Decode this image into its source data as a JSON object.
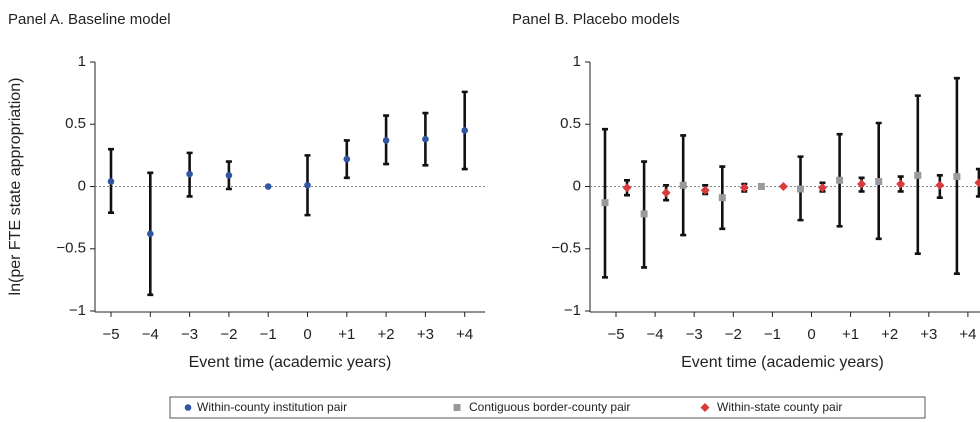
{
  "chart_data": [
    {
      "type": "errorbar",
      "title": "Panel A. Baseline model",
      "x_label": "Event time (academic years)",
      "y_label": "ln(per FTE state appropriation)",
      "categories": [
        "−5",
        "−4",
        "−3",
        "−2",
        "−1",
        "0",
        "+1",
        "+2",
        "+3",
        "+4"
      ],
      "ylim": [
        -1,
        1
      ],
      "yticks": [
        {
          "value": -1,
          "label": "−1"
        },
        {
          "value": -0.5,
          "label": "−0.5"
        },
        0,
        0.5,
        1
      ],
      "reference_line": 0,
      "series": [
        {
          "name": "Within-county institution pair",
          "color": "#2f55a4",
          "marker": "circle",
          "values": [
            0.04,
            -0.38,
            0.1,
            0.09,
            0,
            0.01,
            0.22,
            0.37,
            0.38,
            0.45
          ],
          "lower": [
            -0.21,
            -0.87,
            -0.08,
            -0.02,
            null,
            -0.23,
            0.07,
            0.18,
            0.17,
            0.14
          ],
          "upper": [
            0.3,
            0.11,
            0.27,
            0.2,
            null,
            0.25,
            0.37,
            0.57,
            0.59,
            0.76
          ]
        }
      ]
    },
    {
      "type": "errorbar",
      "title": "Panel B. Placebo models",
      "x_label": "Event time (academic years)",
      "categories": [
        "−5",
        "−4",
        "−3",
        "−2",
        "−1",
        "0",
        "+1",
        "+2",
        "+3",
        "+4"
      ],
      "ylim": [
        -1,
        1
      ],
      "yticks": [
        {
          "value": -1,
          "label": "−1"
        },
        {
          "value": -0.5,
          "label": "−0.5"
        },
        0,
        0.5,
        1
      ],
      "reference_line": 0,
      "series": [
        {
          "name": "Contiguous border-county pair",
          "color": "#9a9a9a",
          "marker": "square",
          "values": [
            -0.13,
            -0.22,
            0.01,
            -0.09,
            0,
            -0.02,
            0.05,
            0.04,
            0.09,
            0.08
          ],
          "lower": [
            -0.73,
            -0.65,
            -0.39,
            -0.34,
            null,
            -0.27,
            -0.32,
            -0.42,
            -0.54,
            -0.7
          ],
          "upper": [
            0.46,
            0.2,
            0.41,
            0.16,
            null,
            0.24,
            0.42,
            0.51,
            0.73,
            0.87
          ]
        },
        {
          "name": "Within-state county pair",
          "color": "#d93a3a",
          "marker": "diamond",
          "values": [
            -0.01,
            -0.05,
            -0.03,
            -0.01,
            0,
            -0.01,
            0.02,
            0.02,
            0.01,
            0.03
          ],
          "lower": [
            -0.07,
            -0.11,
            -0.06,
            -0.04,
            null,
            -0.04,
            -0.04,
            -0.04,
            -0.09,
            -0.08
          ],
          "upper": [
            0.05,
            0.01,
            0.01,
            0.02,
            null,
            0.03,
            0.07,
            0.08,
            0.09,
            0.14
          ]
        }
      ]
    }
  ]
}
